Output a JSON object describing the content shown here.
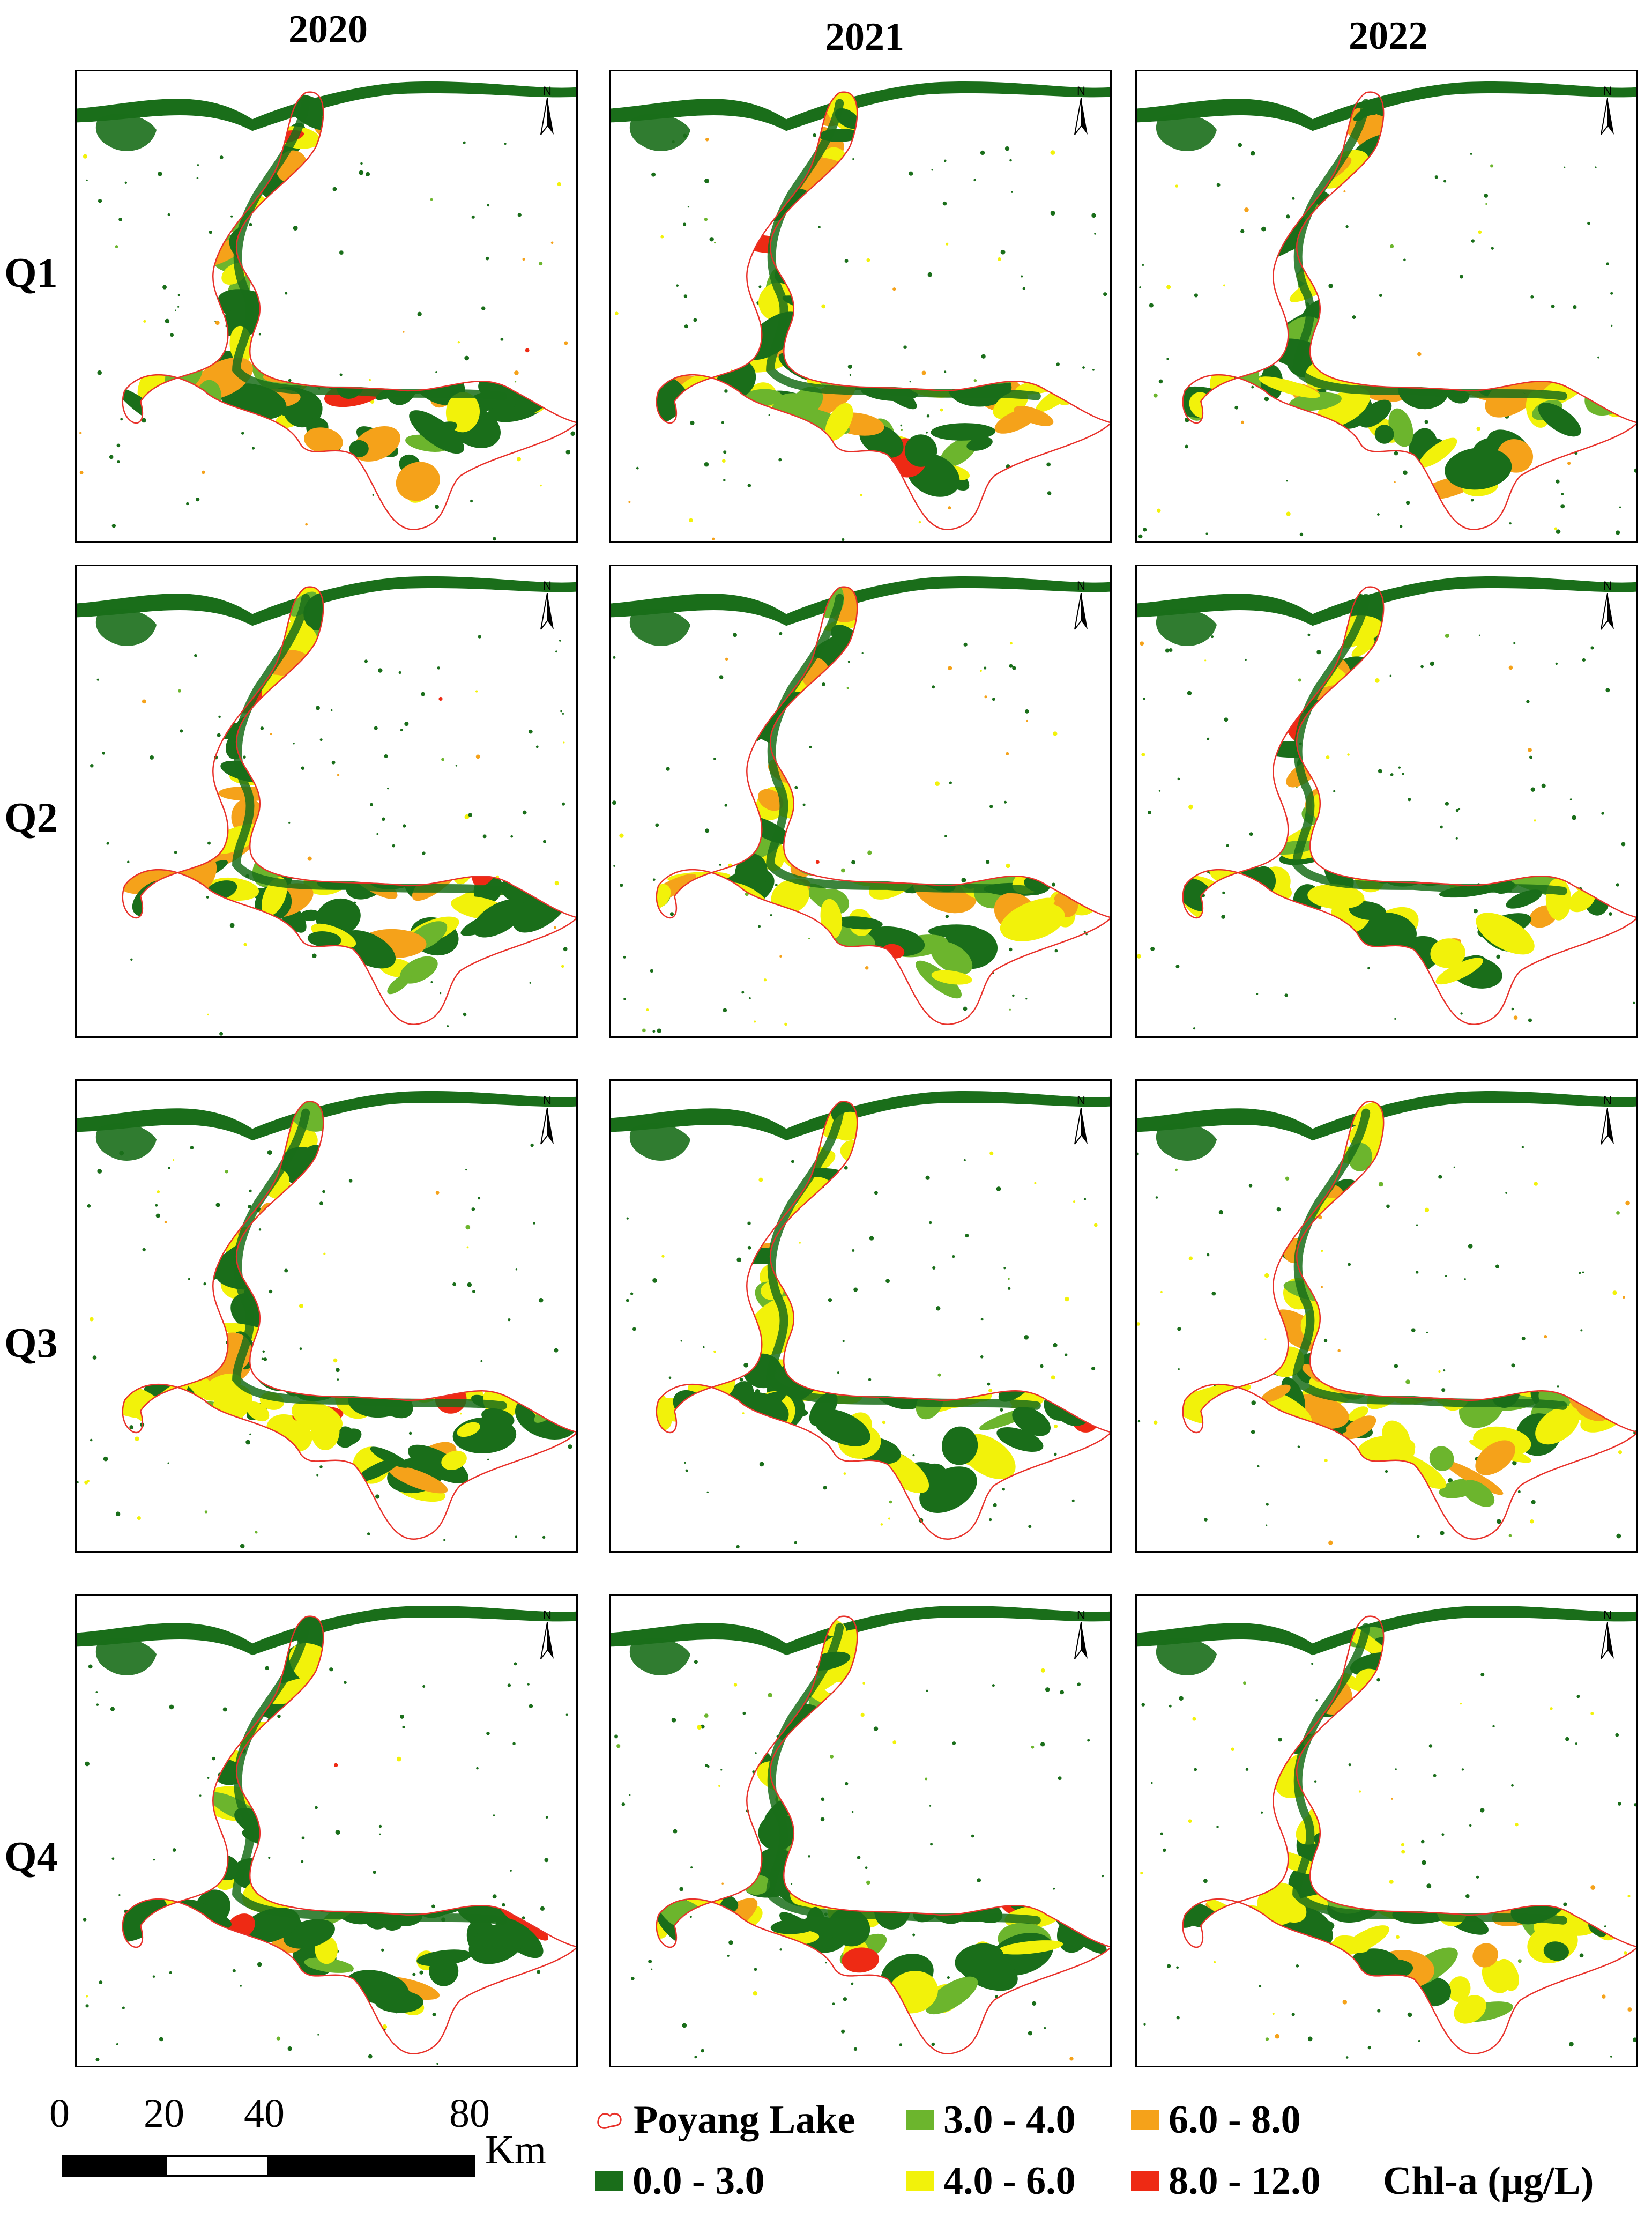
{
  "years": [
    "2020",
    "2021",
    "2022"
  ],
  "quarters": [
    "Q1",
    "Q2",
    "Q3",
    "Q4"
  ],
  "north_label": "N",
  "scale_bar": {
    "ticks": [
      "0",
      "20",
      "40",
      "80"
    ],
    "unit": "Km"
  },
  "legend": {
    "boundary_label": "Poyang Lake",
    "boundary_color": "#e8312a",
    "title": "Chl-a (μg/L)",
    "classes": [
      {
        "label": "0.0 - 3.0",
        "color": "#1a6e1a"
      },
      {
        "label": "3.0 - 4.0",
        "color": "#6cb52d"
      },
      {
        "label": "4.0 - 6.0",
        "color": "#f2f20a"
      },
      {
        "label": "6.0 - 8.0",
        "color": "#f5a21a"
      },
      {
        "label": "8.0 - 12.0",
        "color": "#ee2a14"
      }
    ]
  },
  "panels": [
    {
      "year": "2020",
      "quarter": "Q1",
      "mix": [
        0.45,
        0.15,
        0.2,
        0.18,
        0.02
      ]
    },
    {
      "year": "2021",
      "quarter": "Q1",
      "mix": [
        0.35,
        0.15,
        0.3,
        0.18,
        0.02
      ]
    },
    {
      "year": "2022",
      "quarter": "Q1",
      "mix": [
        0.4,
        0.12,
        0.25,
        0.21,
        0.02
      ]
    },
    {
      "year": "2020",
      "quarter": "Q2",
      "mix": [
        0.45,
        0.1,
        0.25,
        0.18,
        0.02
      ]
    },
    {
      "year": "2021",
      "quarter": "Q2",
      "mix": [
        0.3,
        0.15,
        0.35,
        0.18,
        0.02
      ]
    },
    {
      "year": "2022",
      "quarter": "Q2",
      "mix": [
        0.45,
        0.15,
        0.3,
        0.08,
        0.02
      ]
    },
    {
      "year": "2020",
      "quarter": "Q3",
      "mix": [
        0.4,
        0.1,
        0.4,
        0.08,
        0.02
      ]
    },
    {
      "year": "2021",
      "quarter": "Q3",
      "mix": [
        0.4,
        0.08,
        0.45,
        0.05,
        0.02
      ]
    },
    {
      "year": "2022",
      "quarter": "Q3",
      "mix": [
        0.2,
        0.1,
        0.55,
        0.13,
        0.02
      ]
    },
    {
      "year": "2020",
      "quarter": "Q4",
      "mix": [
        0.65,
        0.05,
        0.22,
        0.06,
        0.02
      ]
    },
    {
      "year": "2021",
      "quarter": "Q4",
      "mix": [
        0.5,
        0.1,
        0.3,
        0.08,
        0.02
      ]
    },
    {
      "year": "2022",
      "quarter": "Q4",
      "mix": [
        0.4,
        0.1,
        0.35,
        0.13,
        0.02
      ]
    }
  ]
}
